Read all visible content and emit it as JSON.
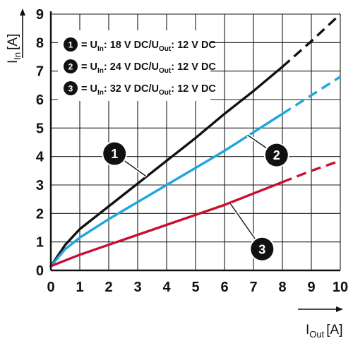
{
  "chart_data": {
    "type": "line",
    "xlabel": {
      "main": "I",
      "sub": "Out",
      "unit": "[A]"
    },
    "ylabel": {
      "main": "I",
      "sub": "In",
      "unit": "[A]"
    },
    "xlim": [
      0,
      10
    ],
    "ylim": [
      0,
      9
    ],
    "x_ticks": [
      "0",
      "1",
      "2",
      "3",
      "4",
      "5",
      "6",
      "7",
      "8",
      "9",
      "10"
    ],
    "y_ticks": [
      "0",
      "1",
      "2",
      "3",
      "4",
      "5",
      "6",
      "7",
      "8",
      "9"
    ],
    "grid": true,
    "legend_position": "top-left",
    "series": [
      {
        "name": "1",
        "legend": {
          "prefix": "= U",
          "sub1": "In",
          "mid": ": 18 V DC/U",
          "sub2": "Out",
          "suffix": ": 12 V DC"
        },
        "color": "#111111",
        "x": [
          0,
          0.5,
          1,
          2,
          3,
          4,
          5,
          6,
          7,
          8,
          9,
          10
        ],
        "y": [
          0.15,
          0.9,
          1.45,
          2.25,
          3.05,
          3.85,
          4.65,
          5.5,
          6.3,
          7.15,
          8.05,
          9.0
        ],
        "dashed_from": 8
      },
      {
        "name": "2",
        "legend": {
          "prefix": "= U",
          "sub1": "In",
          "mid": ": 24 V DC/U",
          "sub2": "Out",
          "suffix": ": 12 V DC"
        },
        "color": "#1ea7dc",
        "x": [
          0,
          0.5,
          1,
          2,
          3,
          4,
          5,
          6,
          7,
          8,
          9,
          10
        ],
        "y": [
          0.15,
          0.75,
          1.15,
          1.8,
          2.4,
          3.0,
          3.6,
          4.2,
          4.85,
          5.5,
          6.15,
          6.8
        ],
        "dashed_from": 8
      },
      {
        "name": "3",
        "legend": {
          "prefix": "= U",
          "sub1": "In",
          "mid": ": 32 V DC/U",
          "sub2": "Out",
          "suffix": ": 12 V DC"
        },
        "color": "#c8102e",
        "x": [
          0,
          1,
          2,
          3,
          4,
          5,
          6,
          7,
          8,
          9,
          10
        ],
        "y": [
          0.15,
          0.55,
          0.9,
          1.25,
          1.6,
          1.95,
          2.3,
          2.7,
          3.1,
          3.5,
          3.85
        ],
        "dashed_from": 8
      }
    ],
    "annotations": [
      {
        "label": "1",
        "series": "1",
        "marker": {
          "x": 2.2,
          "y": 4.1
        },
        "point": {
          "x": 3.3,
          "y": 3.3
        }
      },
      {
        "label": "2",
        "series": "2",
        "marker": {
          "x": 7.8,
          "y": 4.05
        },
        "point": {
          "x": 6.8,
          "y": 4.75
        }
      },
      {
        "label": "3",
        "series": "3",
        "marker": {
          "x": 7.3,
          "y": 0.75
        },
        "point": {
          "x": 6.2,
          "y": 2.35
        }
      }
    ]
  }
}
